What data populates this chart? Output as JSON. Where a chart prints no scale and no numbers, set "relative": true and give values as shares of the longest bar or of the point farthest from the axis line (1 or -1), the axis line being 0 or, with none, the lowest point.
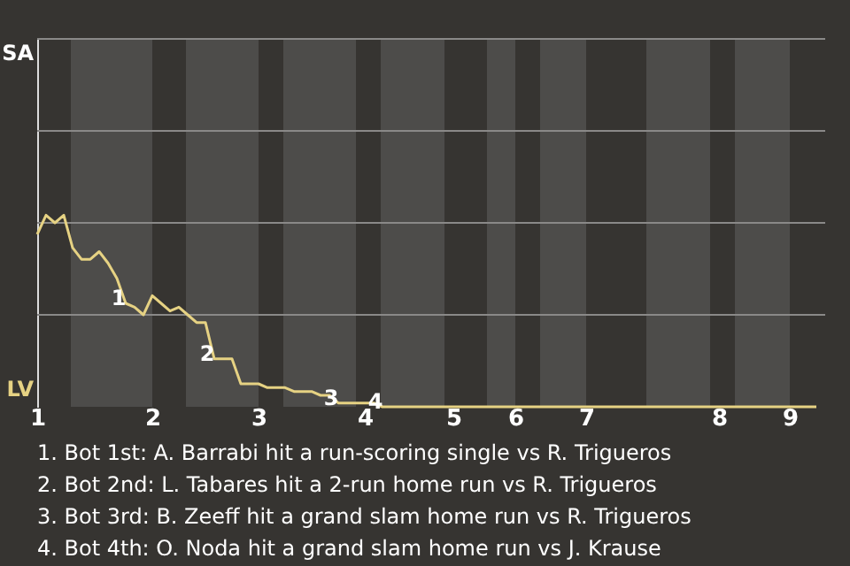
{
  "chart_data": {
    "type": "line",
    "relative": true,
    "categories": [
      "1",
      null,
      null,
      null,
      null,
      null,
      null,
      null,
      null,
      null,
      null,
      null,
      null,
      "2",
      null,
      null,
      null,
      null,
      null,
      null,
      null,
      null,
      null,
      null,
      null,
      "3",
      null,
      null,
      null,
      null,
      null,
      null,
      null,
      null,
      null,
      null,
      null,
      "4",
      null,
      null,
      null,
      null,
      null,
      null,
      null,
      null,
      null,
      "5",
      null,
      null,
      null,
      null,
      null,
      null,
      "6",
      null,
      null,
      null,
      null,
      null,
      null,
      null,
      "7",
      null,
      null,
      null,
      null,
      null,
      null,
      null,
      null,
      null,
      null,
      null,
      null,
      null,
      null,
      "8",
      null,
      null,
      null,
      null,
      null,
      null,
      null,
      "9",
      null,
      null,
      null
    ],
    "series": [
      {
        "color": "#e6d283",
        "values": [
          0.9,
          1,
          0.96,
          1,
          0.83,
          0.77,
          0.77,
          0.81,
          0.75,
          0.67,
          0.54,
          0.52,
          0.48,
          0.58,
          0.54,
          0.5,
          0.52,
          0.48,
          0.44,
          0.44,
          0.25,
          0.25,
          0.25,
          0.12,
          0.12,
          0.12,
          0.1,
          0.1,
          0.1,
          0.08,
          0.08,
          0.08,
          0.06,
          0.06,
          0.02,
          0.02,
          0.02,
          0.02,
          0.02,
          0,
          0,
          0,
          0,
          0,
          0,
          0,
          0,
          0,
          0,
          0,
          0,
          0,
          0,
          0,
          0,
          0,
          0,
          0,
          0,
          0,
          0,
          0,
          0,
          0,
          0,
          0,
          0,
          0,
          0,
          0,
          0,
          0,
          0,
          0,
          0,
          0,
          0,
          0,
          0,
          0,
          0,
          0,
          0,
          0,
          0,
          0,
          0,
          0,
          0
        ]
      }
    ],
    "line_style": "solid",
    "ref_lines": [
      {
        "axis": "y",
        "value": 0.48,
        "color": "#8a8988"
      },
      {
        "axis": "y",
        "value": 0.96,
        "color": "#8a8988"
      },
      {
        "axis": "y",
        "value": 1.44,
        "color": "#8a8988"
      },
      {
        "axis": "y",
        "value": 1.92,
        "color": "#8a8988"
      }
    ],
    "annotations": [
      {
        "text": "1",
        "y": 0.54
      },
      {
        "text": "2",
        "y": 0.25
      },
      {
        "text": "3",
        "y": 0.02
      },
      {
        "text": "4",
        "y": 0
      },
      "SA",
      "LV",
      "1. Bot 1st: A. Barrabi hit a run-scoring single vs R. Trigueros",
      "2. Bot 2nd: L. Tabares hit a 2-run home run vs R. Trigueros",
      "3. Bot 3rd: B. Zeeff hit a grand slam home run vs R. Trigueros",
      "4. Bot 4th: O. Noda hit a grand slam home run vs J. Krause"
    ]
  }
}
